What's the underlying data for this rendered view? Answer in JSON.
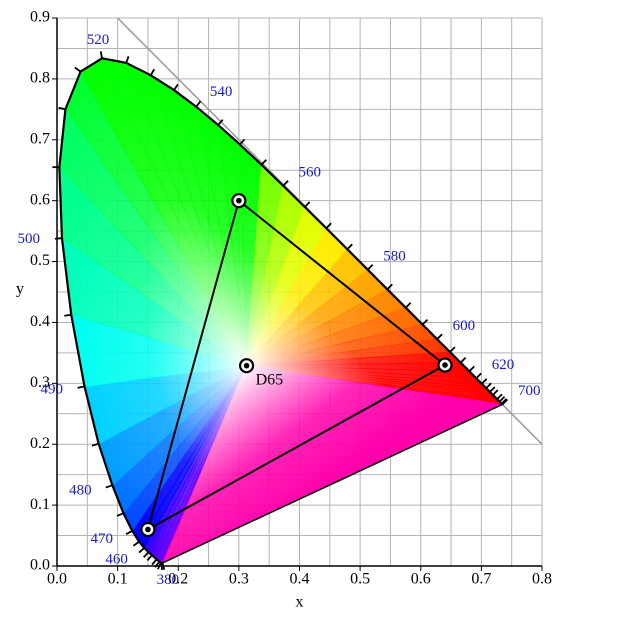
{
  "chart_data": {
    "type": "chromaticity",
    "x_label": "x",
    "y_label": "y",
    "xlim": [
      0,
      0.8
    ],
    "ylim": [
      0,
      0.9
    ],
    "xticks": [
      {
        "value": 0,
        "label": "0.0"
      },
      0.1,
      0.2,
      0.3,
      0.4,
      0.5,
      0.6,
      0.7,
      0.8
    ],
    "yticks": [
      {
        "value": 0,
        "label": "0.0"
      },
      0.1,
      0.2,
      0.3,
      0.4,
      0.5,
      0.6,
      0.7,
      0.8,
      0.9
    ],
    "x_minor_grid": [
      0.05,
      0.15,
      0.25,
      0.35,
      0.45,
      0.55,
      0.65,
      0.75
    ],
    "y_minor_grid": [
      0.05,
      0.15,
      0.25,
      0.35,
      0.45,
      0.55,
      0.65,
      0.75,
      0.85
    ],
    "grid": true,
    "reference_line": {
      "x": [
        0.1,
        0.8
      ],
      "y": [
        0.9,
        0.2
      ]
    },
    "locus": {
      "wavelength": [
        380,
        400,
        420,
        430,
        440,
        450,
        455,
        460,
        465,
        470,
        475,
        480,
        485,
        490,
        495,
        500,
        505,
        510,
        515,
        520,
        525,
        530,
        535,
        540,
        545,
        550,
        555,
        560,
        565,
        570,
        575,
        580,
        585,
        590,
        595,
        600,
        605,
        610,
        615,
        620,
        625,
        630,
        635,
        640,
        650,
        660,
        680,
        700
      ],
      "x": [
        0.1741,
        0.1733,
        0.1714,
        0.1689,
        0.1644,
        0.1566,
        0.151,
        0.144,
        0.1355,
        0.1241,
        0.1096,
        0.0913,
        0.0687,
        0.0454,
        0.0235,
        0.0082,
        0.0039,
        0.0139,
        0.0389,
        0.0743,
        0.1142,
        0.1547,
        0.1929,
        0.2296,
        0.2658,
        0.3016,
        0.3373,
        0.3731,
        0.4087,
        0.4441,
        0.4788,
        0.5125,
        0.5448,
        0.5752,
        0.6029,
        0.627,
        0.6482,
        0.6658,
        0.6801,
        0.6915,
        0.7006,
        0.7079,
        0.714,
        0.719,
        0.726,
        0.73,
        0.7334,
        0.7347
      ],
      "y": [
        0.005,
        0.0048,
        0.0051,
        0.0069,
        0.0109,
        0.0177,
        0.0227,
        0.0297,
        0.0399,
        0.0578,
        0.0868,
        0.1327,
        0.2007,
        0.295,
        0.4127,
        0.5384,
        0.6548,
        0.7502,
        0.812,
        0.8338,
        0.8262,
        0.8059,
        0.7816,
        0.7543,
        0.7243,
        0.6923,
        0.6589,
        0.6245,
        0.5896,
        0.5547,
        0.5202,
        0.4866,
        0.4544,
        0.4242,
        0.3965,
        0.3725,
        0.3514,
        0.334,
        0.3197,
        0.3083,
        0.2993,
        0.292,
        0.2859,
        0.2809,
        0.274,
        0.27,
        0.2666,
        0.2653
      ]
    },
    "wavelength_labels": [
      380,
      460,
      470,
      480,
      490,
      500,
      520,
      540,
      560,
      580,
      600,
      620,
      700
    ],
    "gamut": {
      "x": [
        0.64,
        0.3,
        0.15
      ],
      "y": [
        0.33,
        0.6,
        0.06
      ]
    },
    "white_point": {
      "name": "D65",
      "x": 0.3127,
      "y": 0.329
    }
  }
}
